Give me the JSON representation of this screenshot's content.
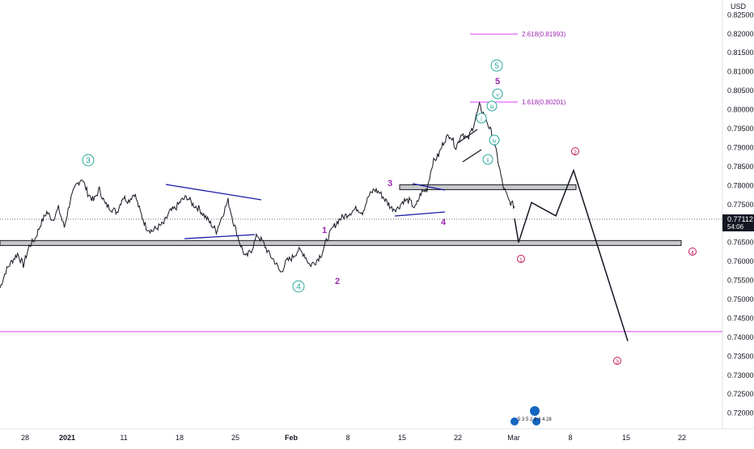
{
  "currency": "USD",
  "current_price": "0.77112",
  "countdown": "54:06",
  "price_ticks": [
    "0.82500",
    "0.82000",
    "0.81500",
    "0.81000",
    "0.80500",
    "0.80000",
    "0.79500",
    "0.79000",
    "0.78500",
    "0.78000",
    "0.77500",
    "0.77000",
    "0.76500",
    "0.76000",
    "0.75500",
    "0.75000",
    "0.74500",
    "0.74000",
    "0.73500",
    "0.73000",
    "0.72500",
    "0.72000"
  ],
  "date_ticks": [
    "28",
    "2021",
    "11",
    "18",
    "25",
    "Feb",
    "8",
    "15",
    "22",
    "Mar",
    "8",
    "15",
    "22"
  ],
  "fib_labels": [
    "2.618(0.81993)",
    "1.618(0.80201)"
  ],
  "waves_green_major": [
    "3",
    "4",
    "5"
  ],
  "waves_green_minor": [
    "i",
    "ii",
    "iii",
    "iv",
    "v"
  ],
  "waves_purple": [
    "1",
    "2",
    "3",
    "4",
    "5"
  ],
  "waves_pink": [
    "1",
    "2",
    "3",
    "4"
  ],
  "events_text": "5 3 5 2 1 4 4 28",
  "chart_data": {
    "type": "line",
    "symbol_quote": "USD",
    "ylim": [
      0.715,
      0.8255
    ],
    "series": [
      {
        "values": [
          0.753,
          0.7575,
          0.76,
          0.762,
          0.759,
          0.764,
          0.766,
          0.77,
          0.773,
          0.771,
          0.774,
          0.769,
          0.776,
          0.78,
          0.782,
          0.778,
          0.776,
          0.779,
          0.775,
          0.774,
          0.773,
          0.777,
          0.776,
          0.778,
          0.773,
          0.769,
          0.768,
          0.769,
          0.77,
          0.773,
          0.774,
          0.776,
          0.777,
          0.775,
          0.774,
          0.772,
          0.77,
          0.768,
          0.772,
          0.776,
          0.77,
          0.765,
          0.761,
          0.763,
          0.767,
          0.765,
          0.762,
          0.76,
          0.757,
          0.76,
          0.761,
          0.763,
          0.762,
          0.759,
          0.76,
          0.762,
          0.766,
          0.769,
          0.771,
          0.772,
          0.773,
          0.774,
          0.773,
          0.777,
          0.779,
          0.778,
          0.776,
          0.774,
          0.774,
          0.776,
          0.776,
          0.774,
          0.778,
          0.779,
          0.786,
          0.788,
          0.792,
          0.7935,
          0.79,
          0.794,
          0.792,
          0.796,
          0.801,
          0.798,
          0.794,
          0.788,
          0.78,
          0.776,
          0.7745
        ]
      }
    ],
    "zones": [
      {
        "from": 0.779,
        "to": 0.7802
      },
      {
        "from": 0.7642,
        "to": 0.7655
      }
    ],
    "horizontal_lines": [
      0.7415
    ],
    "fib_levels": [
      0.81993,
      0.80201
    ],
    "projection": [
      0.765,
      0.7755,
      0.772,
      0.784,
      0.739
    ]
  }
}
